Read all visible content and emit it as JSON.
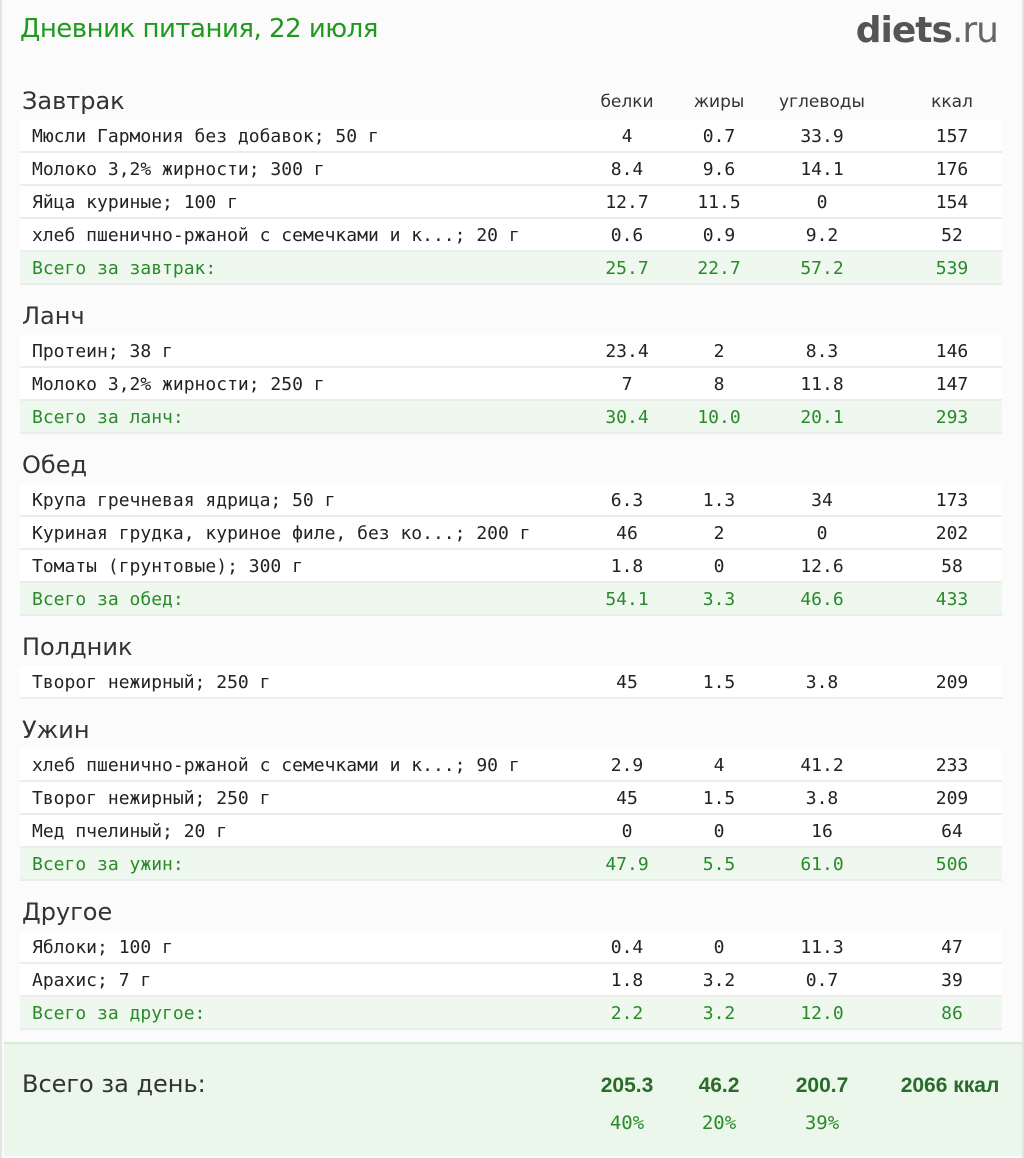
{
  "header": {
    "title": "Дневник питания, 22 июля",
    "logo_main": "diets",
    "logo_tld": ".ru"
  },
  "columns": {
    "protein": "белки",
    "fat": "жиры",
    "carbs": "углеводы",
    "kcal": "ккал"
  },
  "meals": [
    {
      "title": "Завтрак",
      "items": [
        [
          "Мюсли Гармония без добавок; 50 г",
          "4",
          "0.7",
          "33.9",
          "157"
        ],
        [
          "Молоко 3,2% жирности; 300 г",
          "8.4",
          "9.6",
          "14.1",
          "176"
        ],
        [
          "Яйца куриные; 100 г",
          "12.7",
          "11.5",
          "0",
          "154"
        ],
        [
          "хлеб пшенично-ржаной с семечками и к...; 20 г",
          "0.6",
          "0.9",
          "9.2",
          "52"
        ]
      ],
      "total": [
        "Всего за завтрак:",
        "25.7",
        "22.7",
        "57.2",
        "539"
      ]
    },
    {
      "title": "Ланч",
      "items": [
        [
          "Протеин; 38 г",
          "23.4",
          "2",
          "8.3",
          "146"
        ],
        [
          "Молоко 3,2% жирности; 250 г",
          "7",
          "8",
          "11.8",
          "147"
        ]
      ],
      "total": [
        "Всего за ланч:",
        "30.4",
        "10.0",
        "20.1",
        "293"
      ]
    },
    {
      "title": "Обед",
      "items": [
        [
          "Крупа гречневая ядрица; 50 г",
          "6.3",
          "1.3",
          "34",
          "173"
        ],
        [
          "Куриная грудка, куриное филе, без ко...; 200 г",
          "46",
          "2",
          "0",
          "202"
        ],
        [
          "Томаты (грунтовые); 300 г",
          "1.8",
          "0",
          "12.6",
          "58"
        ]
      ],
      "total": [
        "Всего за обед:",
        "54.1",
        "3.3",
        "46.6",
        "433"
      ]
    },
    {
      "title": "Полдник",
      "items": [
        [
          "Творог нежирный; 250 г",
          "45",
          "1.5",
          "3.8",
          "209"
        ]
      ],
      "total": null
    },
    {
      "title": "Ужин",
      "items": [
        [
          "хлеб пшенично-ржаной с семечками и к...; 90 г",
          "2.9",
          "4",
          "41.2",
          "233"
        ],
        [
          "Творог нежирный; 250 г",
          "45",
          "1.5",
          "3.8",
          "209"
        ],
        [
          "Мед пчелиный; 20 г",
          "0",
          "0",
          "16",
          "64"
        ]
      ],
      "total": [
        "Всего за ужин:",
        "47.9",
        "5.5",
        "61.0",
        "506"
      ]
    },
    {
      "title": "Другое",
      "items": [
        [
          "Яблоки; 100 г",
          "0.4",
          "0",
          "11.3",
          "47"
        ],
        [
          "Арахис; 7 г",
          "1.8",
          "3.2",
          "0.7",
          "39"
        ]
      ],
      "total": [
        "Всего за другое:",
        "2.2",
        "3.2",
        "12.0",
        "86"
      ]
    }
  ],
  "day_total": {
    "label": "Всего за день:",
    "protein": "205.3",
    "fat": "46.2",
    "carbs": "200.7",
    "kcal": "2066 ккал",
    "protein_pct": "40%",
    "fat_pct": "20%",
    "carbs_pct": "39%"
  }
}
